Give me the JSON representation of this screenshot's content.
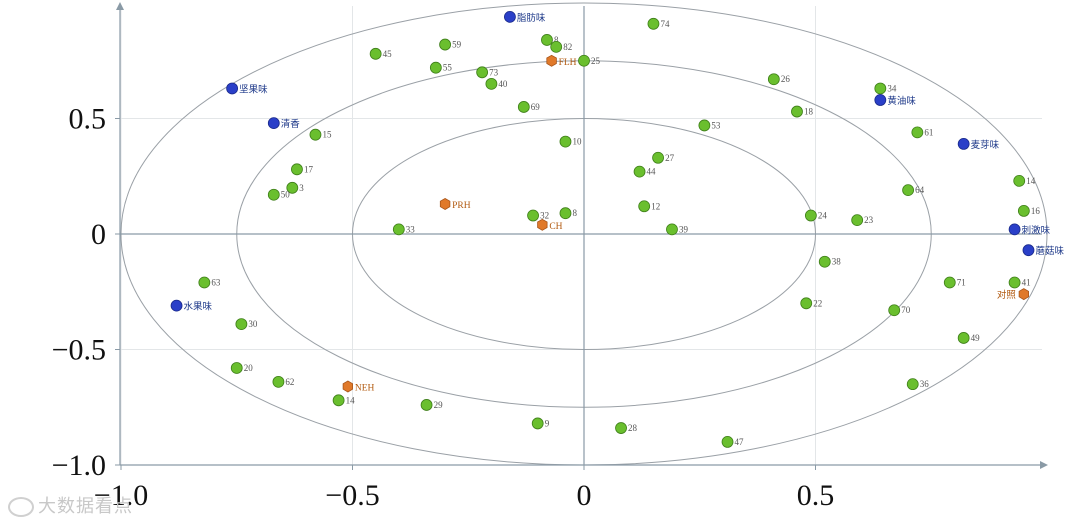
{
  "chart_data": {
    "type": "scatter",
    "title": "",
    "xlabel": "",
    "ylabel": "",
    "xlim": [
      -1.0,
      1.0
    ],
    "ylim": [
      -1.0,
      1.0
    ],
    "x_ticks": [
      -1.0,
      -0.5,
      0,
      0.5
    ],
    "x_tick_labels": [
      "−1.0",
      "−0.5",
      "0",
      "0.5"
    ],
    "y_ticks": [
      -1.0,
      -0.5,
      0,
      0.5
    ],
    "y_tick_labels": [
      "−1.0",
      "−0.5",
      "0",
      "0.5"
    ],
    "ellipses": [
      0.5,
      0.75,
      1.0
    ],
    "grid": true,
    "colors": {
      "points": "#6abf2e",
      "ingredients": "#2a3fc8",
      "samples": "#e0792a",
      "axis": "#8a9aa6",
      "ellipse": "#9aa0a6"
    },
    "series": [
      {
        "kind": "points",
        "points": [
          {
            "label": "74",
            "x": 0.15,
            "y": 0.91
          },
          {
            "label": "45",
            "x": -0.45,
            "y": 0.78
          },
          {
            "label": "59",
            "x": -0.3,
            "y": 0.82
          },
          {
            "label": "8",
            "x": -0.08,
            "y": 0.84
          },
          {
            "label": "82",
            "x": -0.06,
            "y": 0.81
          },
          {
            "label": "25",
            "x": 0.0,
            "y": 0.75
          },
          {
            "label": "55",
            "x": -0.32,
            "y": 0.72
          },
          {
            "label": "73",
            "x": -0.22,
            "y": 0.7
          },
          {
            "label": "40",
            "x": -0.2,
            "y": 0.65
          },
          {
            "label": "26",
            "x": 0.41,
            "y": 0.67
          },
          {
            "label": "34",
            "x": 0.64,
            "y": 0.63
          },
          {
            "label": "69",
            "x": -0.13,
            "y": 0.55
          },
          {
            "label": "18",
            "x": 0.46,
            "y": 0.53
          },
          {
            "label": "53",
            "x": 0.26,
            "y": 0.47
          },
          {
            "label": "15",
            "x": -0.58,
            "y": 0.43
          },
          {
            "label": "61",
            "x": 0.72,
            "y": 0.44
          },
          {
            "label": "10",
            "x": -0.04,
            "y": 0.4
          },
          {
            "label": "27",
            "x": 0.16,
            "y": 0.33
          },
          {
            "label": "17",
            "x": -0.62,
            "y": 0.28
          },
          {
            "label": "44",
            "x": 0.12,
            "y": 0.27
          },
          {
            "label": "14",
            "x": 0.94,
            "y": 0.23
          },
          {
            "label": "3",
            "x": -0.63,
            "y": 0.2
          },
          {
            "label": "64",
            "x": 0.7,
            "y": 0.19
          },
          {
            "label": "50",
            "x": -0.67,
            "y": 0.17
          },
          {
            "label": "12",
            "x": 0.13,
            "y": 0.12
          },
          {
            "label": "16",
            "x": 0.95,
            "y": 0.1
          },
          {
            "label": "8",
            "x": -0.04,
            "y": 0.09
          },
          {
            "label": "32",
            "x": -0.11,
            "y": 0.08
          },
          {
            "label": "24",
            "x": 0.49,
            "y": 0.08
          },
          {
            "label": "23",
            "x": 0.59,
            "y": 0.06
          },
          {
            "label": "33",
            "x": -0.4,
            "y": 0.02
          },
          {
            "label": "39",
            "x": 0.19,
            "y": 0.02
          },
          {
            "label": "38",
            "x": 0.52,
            "y": -0.12
          },
          {
            "label": "63",
            "x": -0.82,
            "y": -0.21
          },
          {
            "label": "71",
            "x": 0.79,
            "y": -0.21
          },
          {
            "label": "41",
            "x": 0.93,
            "y": -0.21
          },
          {
            "label": "22",
            "x": 0.48,
            "y": -0.3
          },
          {
            "label": "70",
            "x": 0.67,
            "y": -0.33
          },
          {
            "label": "30",
            "x": -0.74,
            "y": -0.39
          },
          {
            "label": "49",
            "x": 0.82,
            "y": -0.45
          },
          {
            "label": "20",
            "x": -0.75,
            "y": -0.58
          },
          {
            "label": "62",
            "x": -0.66,
            "y": -0.64
          },
          {
            "label": "36",
            "x": 0.71,
            "y": -0.65
          },
          {
            "label": "14",
            "x": -0.53,
            "y": -0.72
          },
          {
            "label": "29",
            "x": -0.34,
            "y": -0.74
          },
          {
            "label": "9",
            "x": -0.1,
            "y": -0.82
          },
          {
            "label": "28",
            "x": 0.08,
            "y": -0.84
          },
          {
            "label": "47",
            "x": 0.31,
            "y": -0.9
          }
        ]
      },
      {
        "kind": "ingredients",
        "points": [
          {
            "label": "脂肪味",
            "x": -0.16,
            "y": 0.94
          },
          {
            "label": "坚果味",
            "x": -0.76,
            "y": 0.63
          },
          {
            "label": "清香",
            "x": -0.67,
            "y": 0.48
          },
          {
            "label": "黄油味",
            "x": 0.64,
            "y": 0.58
          },
          {
            "label": "麦芽味",
            "x": 0.82,
            "y": 0.39
          },
          {
            "label": "刺激味",
            "x": 0.93,
            "y": 0.02
          },
          {
            "label": "蘑菇味",
            "x": 0.96,
            "y": -0.07
          },
          {
            "label": "水果味",
            "x": -0.88,
            "y": -0.31
          }
        ]
      },
      {
        "kind": "samples",
        "points": [
          {
            "label": "FLH",
            "x": -0.07,
            "y": 0.75
          },
          {
            "label": "PRH",
            "x": -0.3,
            "y": 0.13
          },
          {
            "label": "CH",
            "x": -0.09,
            "y": 0.04
          },
          {
            "label": "对照",
            "x": 0.95,
            "y": -0.26
          },
          {
            "label": "NEH",
            "x": -0.51,
            "y": -0.66
          }
        ]
      }
    ]
  },
  "watermark": "大数据看点"
}
